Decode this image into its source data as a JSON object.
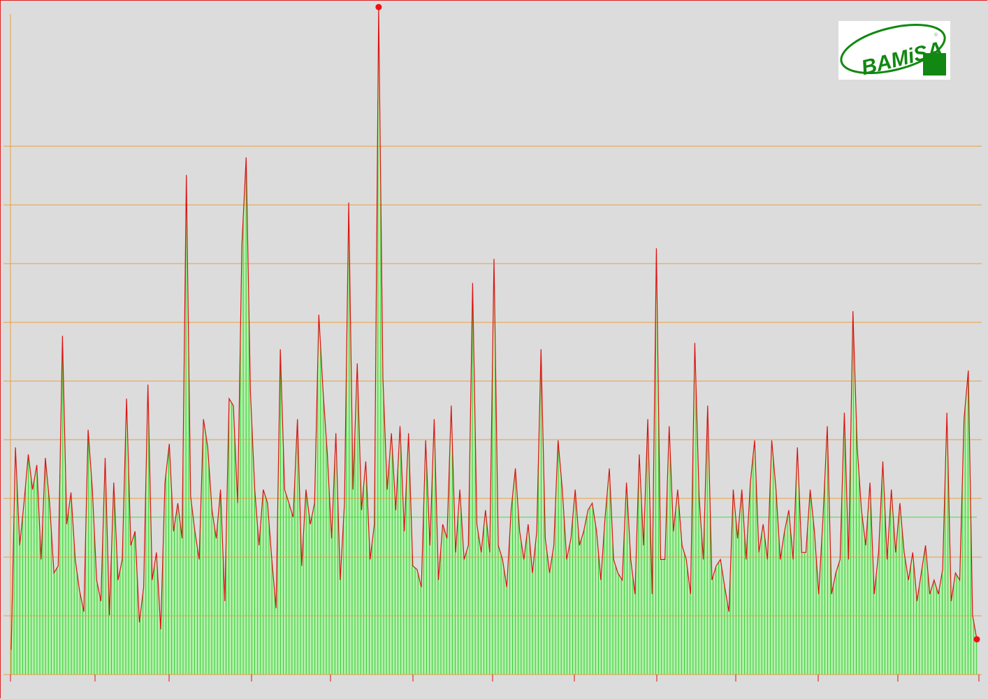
{
  "chart_data": {
    "type": "bar",
    "title": "",
    "xlabel": "",
    "ylabel": "",
    "ylim": [
      0,
      11.49
    ],
    "grid": true,
    "gridline_values": [
      1,
      2,
      3,
      4,
      5,
      6,
      7,
      8,
      9
    ],
    "mean_line": 2.68,
    "colors": {
      "background": "#dcdcdc",
      "grid": "#e8a040",
      "bars": "#33cc33",
      "fill": "#b4f0ac",
      "line": "#dd1111",
      "mean": "#44dd44",
      "marker": "#ee1111"
    },
    "markers": [
      "max",
      "last"
    ],
    "values": [
      0.42,
      3.87,
      2.2,
      2.92,
      3.75,
      3.15,
      3.57,
      1.96,
      3.69,
      2.92,
      1.73,
      1.85,
      5.77,
      2.56,
      3.1,
      1.96,
      1.43,
      1.07,
      4.17,
      3.15,
      1.61,
      1.25,
      3.69,
      1.01,
      3.27,
      1.61,
      1.96,
      4.7,
      2.2,
      2.44,
      0.89,
      1.49,
      4.94,
      1.61,
      2.08,
      0.77,
      3.27,
      3.93,
      2.44,
      2.92,
      2.32,
      8.51,
      3.04,
      2.44,
      1.96,
      4.35,
      3.87,
      2.8,
      2.32,
      3.15,
      1.25,
      4.7,
      4.58,
      2.92,
      7.32,
      8.81,
      4.82,
      3.15,
      2.2,
      3.15,
      2.92,
      1.96,
      1.13,
      5.54,
      3.15,
      2.92,
      2.68,
      4.35,
      1.85,
      3.15,
      2.56,
      2.92,
      6.13,
      4.82,
      3.75,
      2.32,
      4.11,
      1.61,
      2.92,
      8.04,
      3.15,
      5.3,
      2.8,
      3.63,
      1.96,
      2.56,
      11.37,
      5.06,
      3.15,
      4.11,
      2.8,
      4.23,
      2.44,
      4.11,
      1.85,
      1.79,
      1.49,
      3.99,
      2.2,
      4.35,
      1.61,
      2.56,
      2.32,
      4.58,
      2.08,
      3.15,
      1.96,
      2.2,
      6.67,
      2.56,
      2.08,
      2.8,
      2.08,
      7.08,
      2.2,
      1.96,
      1.49,
      2.8,
      3.51,
      2.44,
      1.96,
      2.56,
      1.73,
      2.44,
      5.54,
      2.32,
      1.73,
      2.2,
      3.99,
      3.15,
      1.96,
      2.32,
      3.15,
      2.2,
      2.44,
      2.8,
      2.92,
      2.44,
      1.61,
      2.68,
      3.51,
      1.96,
      1.73,
      1.61,
      3.27,
      1.96,
      1.37,
      3.75,
      2.2,
      4.35,
      1.37,
      7.26,
      1.96,
      1.96,
      4.23,
      2.44,
      3.15,
      2.2,
      1.96,
      1.37,
      5.65,
      3.04,
      1.96,
      4.58,
      1.61,
      1.85,
      1.96,
      1.49,
      1.07,
      3.15,
      2.32,
      3.15,
      1.96,
      3.27,
      3.99,
      2.08,
      2.56,
      1.96,
      3.99,
      3.15,
      1.96,
      2.44,
      2.8,
      1.96,
      3.87,
      2.08,
      2.08,
      3.15,
      2.44,
      1.37,
      2.68,
      4.23,
      1.37,
      1.73,
      1.96,
      4.46,
      1.96,
      6.19,
      3.87,
      2.8,
      2.2,
      3.27,
      1.37,
      2.08,
      3.63,
      1.96,
      3.15,
      2.08,
      2.92,
      2.08,
      1.61,
      2.08,
      1.25,
      1.73,
      2.2,
      1.37,
      1.61,
      1.37,
      1.79,
      4.46,
      1.25,
      1.73,
      1.61,
      4.35,
      5.18,
      1.01,
      0.6
    ]
  },
  "logo": {
    "text": "BAMiSA",
    "mark": "®"
  }
}
